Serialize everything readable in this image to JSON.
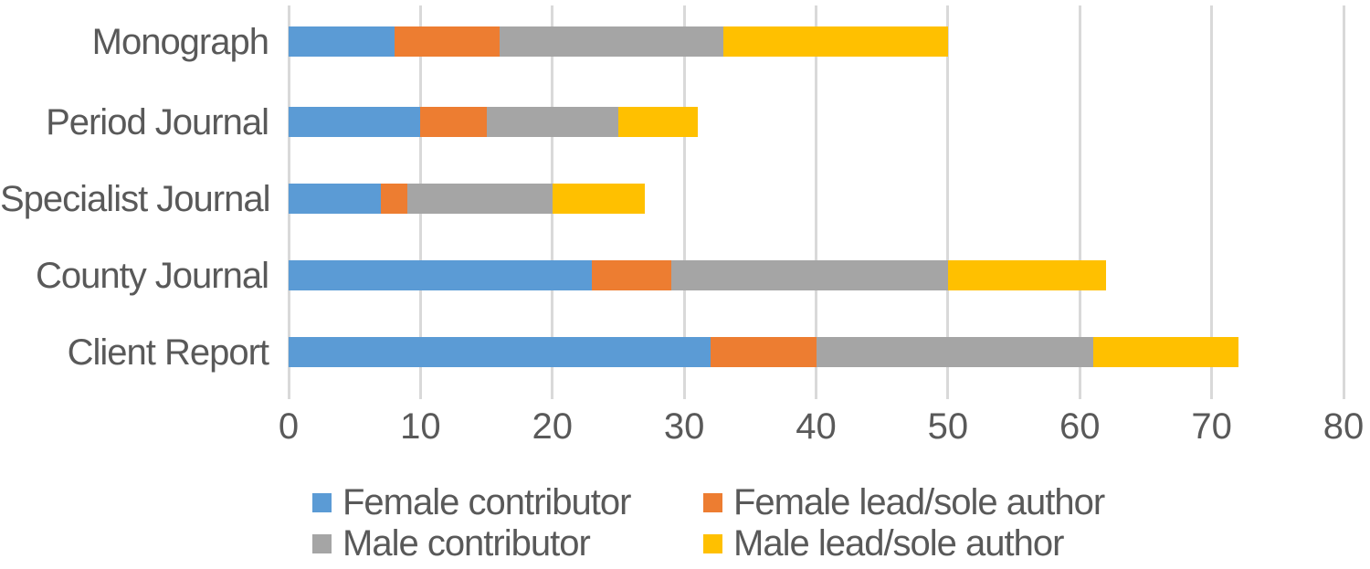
{
  "chart_data": {
    "type": "bar",
    "orientation": "horizontal",
    "stacked": true,
    "title": "",
    "categories": [
      "Monograph",
      "Period Journal",
      "Specialist Journal",
      "County Journal",
      "Client Report"
    ],
    "series": [
      {
        "name": "Female contributor",
        "color": "#5B9BD5",
        "values": [
          8,
          10,
          7,
          23,
          32
        ]
      },
      {
        "name": "Female lead/sole author",
        "color": "#ED7D31",
        "values": [
          8,
          5,
          2,
          6,
          8
        ]
      },
      {
        "name": "Male contributor",
        "color": "#A5A5A5",
        "values": [
          17,
          10,
          11,
          21,
          21
        ]
      },
      {
        "name": "Male lead/sole author",
        "color": "#FFC000",
        "values": [
          17,
          6,
          7,
          12,
          11
        ]
      }
    ],
    "stack_totals": [
      50,
      31,
      27,
      62,
      72
    ],
    "x_axis": {
      "min": 0,
      "max": 80,
      "tick_step": 10,
      "tick_labels": [
        "0",
        "10",
        "20",
        "30",
        "40",
        "50",
        "60",
        "70",
        "80"
      ]
    },
    "grid": true,
    "legend_position": "bottom",
    "colors": {
      "gridline": "#D9D9D9",
      "text": "#595959",
      "background": "#FFFFFF"
    }
  }
}
